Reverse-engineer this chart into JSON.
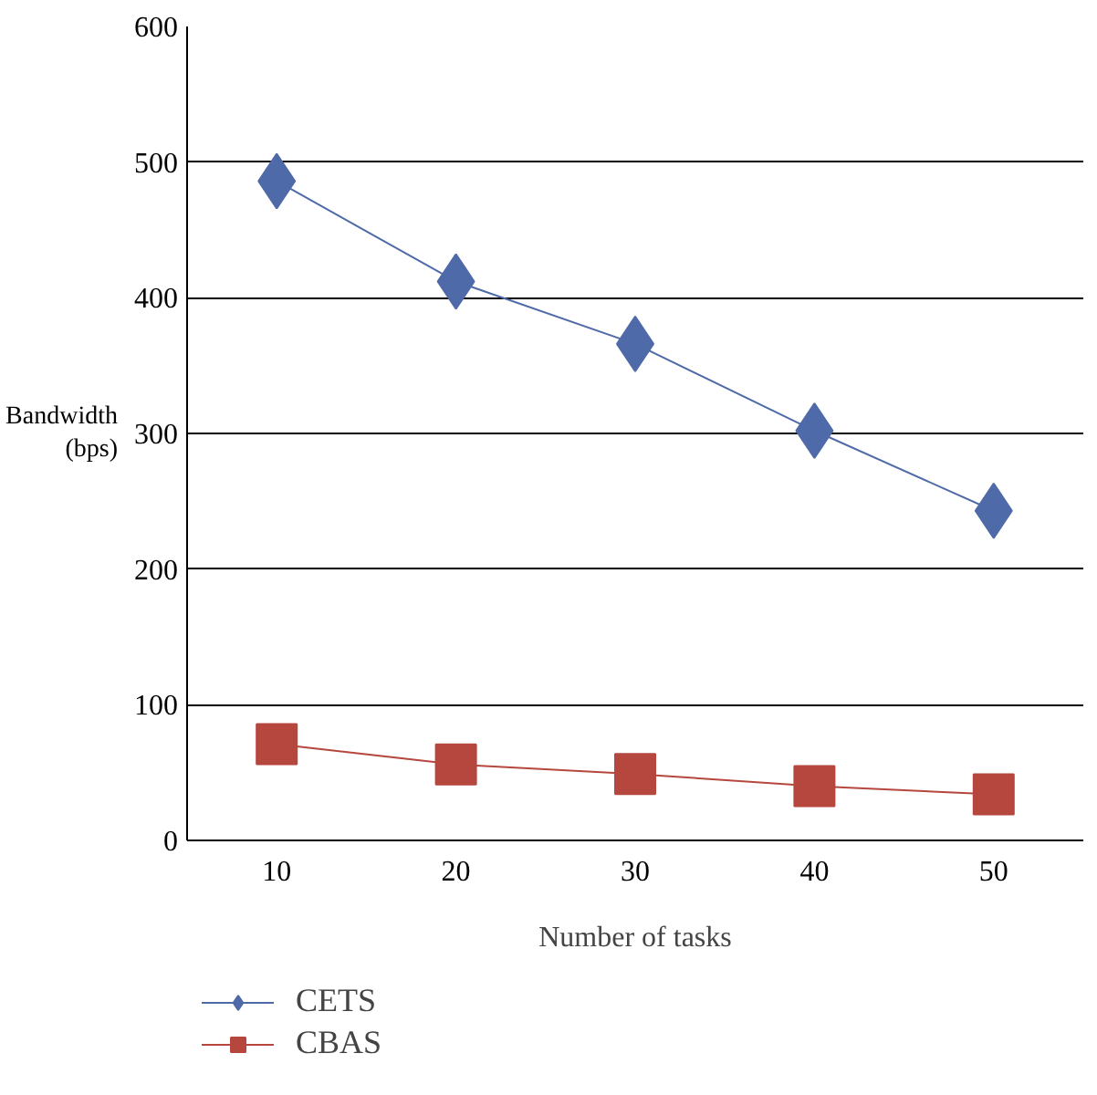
{
  "chart_data": {
    "type": "line",
    "xlabel": "Number of tasks",
    "ylabel": "Bandwidth (bps)",
    "categories": [
      "10",
      "20",
      "30",
      "40",
      "50"
    ],
    "series": [
      {
        "name": "CETS",
        "color": "#4f6aa8",
        "marker": "diamond",
        "values": [
          486,
          412,
          366,
          302,
          243
        ]
      },
      {
        "name": "CBAS",
        "color": "#b5473f",
        "marker": "square",
        "values": [
          71,
          56,
          49,
          40,
          34
        ]
      }
    ],
    "ylim": [
      0,
      600
    ],
    "yticks": [
      0,
      100,
      200,
      300,
      400,
      500,
      600
    ],
    "grid": "y",
    "legend": "bottom",
    "line_style": "solid"
  }
}
